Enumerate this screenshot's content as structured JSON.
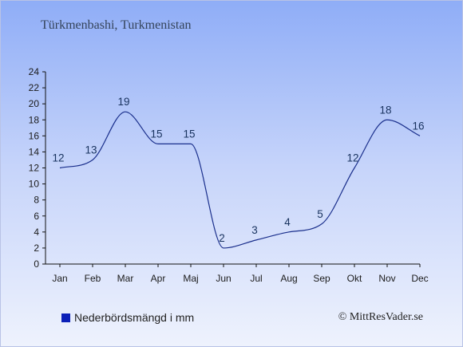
{
  "header": {
    "title": "Türkmenbashi, Turkmenistan"
  },
  "legend": {
    "label": "Nederbördsmängd i mm",
    "icon": "square-legend-marker"
  },
  "credit": {
    "text": "© MittResVader.se"
  },
  "colors": {
    "line": "#1a2f8c",
    "legend_marker": "#0b1fb8",
    "axis": "#111111",
    "label": "#19335f"
  },
  "chart_data": {
    "type": "line",
    "title": "Türkmenbashi, Turkmenistan",
    "xlabel": "",
    "ylabel": "",
    "categories": [
      "Jan",
      "Feb",
      "Mar",
      "Apr",
      "Maj",
      "Jun",
      "Jul",
      "Aug",
      "Sep",
      "Okt",
      "Nov",
      "Dec"
    ],
    "series": [
      {
        "name": "Nederbördsmängd i mm",
        "values": [
          12,
          13,
          19,
          15,
          15,
          2,
          3,
          4,
          5,
          12,
          18,
          16
        ]
      }
    ],
    "ylim": [
      0,
      24
    ],
    "yticks": [
      0,
      2,
      4,
      6,
      8,
      10,
      12,
      14,
      16,
      18,
      20,
      22,
      24
    ],
    "grid": false,
    "legend_position": "bottom-left",
    "data_labels": true
  }
}
